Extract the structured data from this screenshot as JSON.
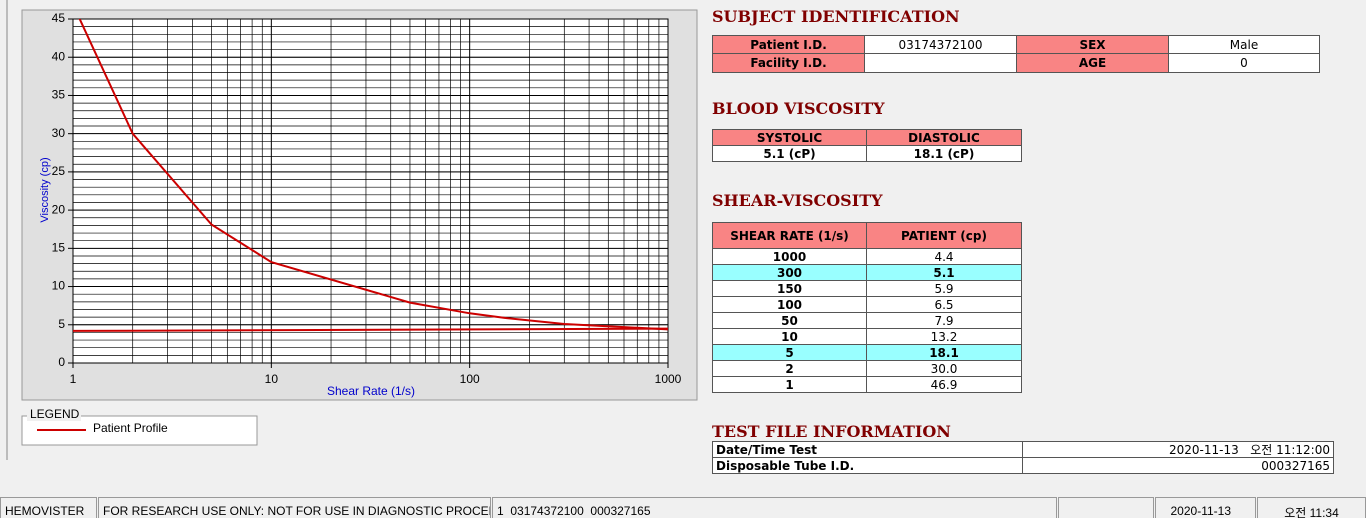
{
  "chart_data": {
    "type": "line",
    "xlabel": "Shear Rate (1/s)",
    "ylabel": "Viscosity (cp)",
    "xlog": true,
    "xlim": [
      1,
      1000
    ],
    "ylim": [
      0,
      45
    ],
    "xticks": [
      1,
      10,
      100,
      1000
    ],
    "yticks": [
      0,
      5,
      10,
      15,
      20,
      25,
      30,
      35,
      40,
      45
    ],
    "grid": true,
    "legend_title": "LEGEND",
    "series": [
      {
        "name": "Patient Profile",
        "color": "#cc0000",
        "x": [
          1,
          2,
          5,
          10,
          50,
          100,
          150,
          300,
          1000
        ],
        "values": [
          46.9,
          30.0,
          18.1,
          13.2,
          7.9,
          6.5,
          5.9,
          5.1,
          4.4
        ]
      },
      {
        "color": "#cc0000",
        "x": [
          1,
          12,
          1000
        ],
        "values": [
          4.2,
          4.3,
          4.5
        ]
      }
    ]
  },
  "subject": {
    "title": "SUBJECT IDENTIFICATION",
    "fields": [
      {
        "label": "Patient I.D.",
        "value": "03174372100"
      },
      {
        "label": "SEX",
        "value": "Male"
      },
      {
        "label": "Facility I.D."
      },
      {
        "label": "AGE",
        "value": "0"
      }
    ]
  },
  "blood": {
    "title": "BLOOD VISCOSITY",
    "headers": [
      "SYSTOLIC",
      "DIASTOLIC"
    ],
    "values": [
      "5.1 (cP)",
      "18.1 (cP)"
    ]
  },
  "shear": {
    "title": "SHEAR-VISCOSITY",
    "headers": [
      "SHEAR RATE (1/s)",
      "PATIENT (cp)"
    ],
    "rows": [
      {
        "rate": 1000,
        "value": "4.4"
      },
      {
        "rate": 300,
        "value": "5.1",
        "highlight": true
      },
      {
        "rate": 150,
        "value": "5.9"
      },
      {
        "rate": 100,
        "value": "6.5"
      },
      {
        "rate": 50,
        "value": "7.9"
      },
      {
        "rate": 10,
        "value": "13.2"
      },
      {
        "rate": 5,
        "value": "18.1",
        "highlight": true
      },
      {
        "rate": 2,
        "value": "30.0"
      },
      {
        "rate": 1,
        "value": "46.9"
      }
    ]
  },
  "testfile": {
    "title": "TEST FILE INFORMATION",
    "rows": [
      {
        "label": "Date/Time Test",
        "value": "2020-11-13   오전 11:12:00"
      },
      {
        "label": "Disposable Tube I.D.",
        "value": "000327165"
      }
    ]
  },
  "status": [
    "HEMOVISTER",
    "FOR RESEARCH USE ONLY: NOT FOR USE IN DIAGNOSTIC PROCEDURES",
    "1  03174372100  000327165",
    "2020-11-13",
    "오전 11:34"
  ]
}
